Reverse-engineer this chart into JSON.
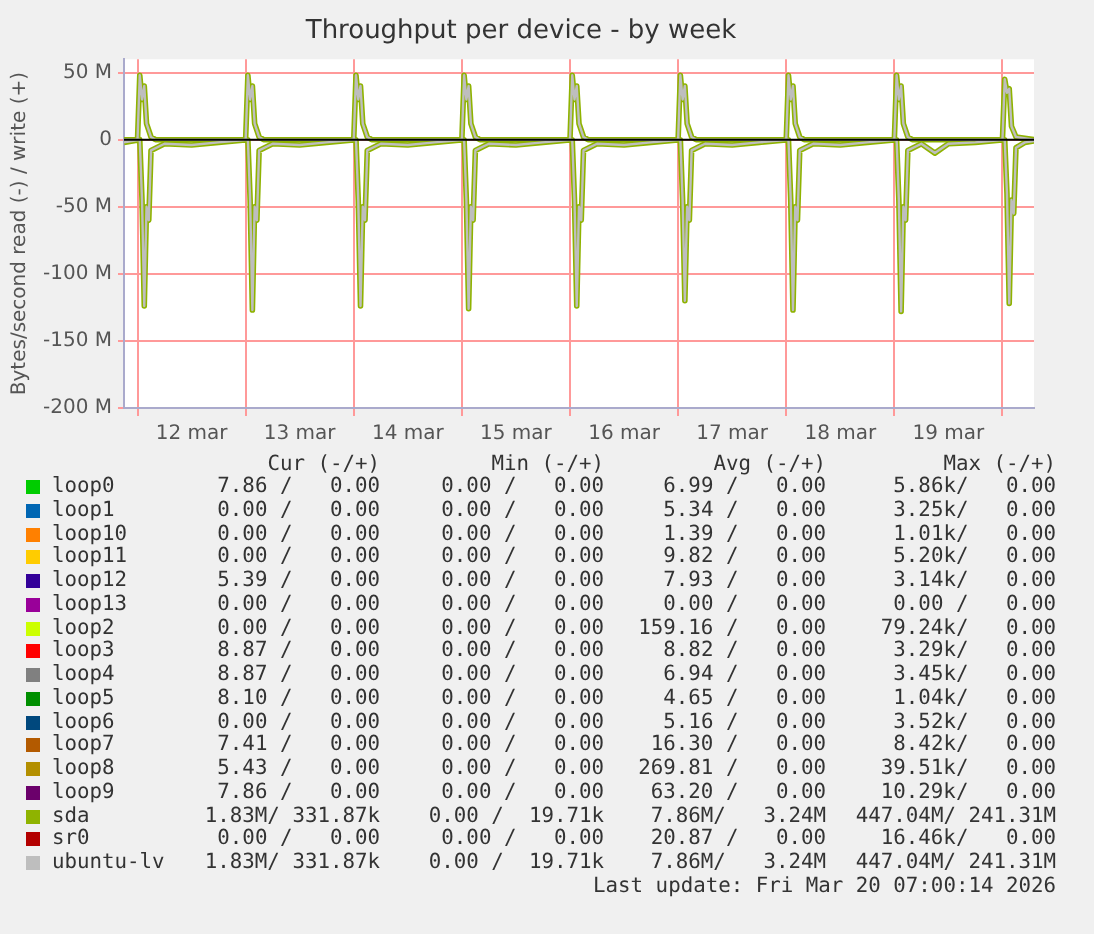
{
  "chart_data": {
    "type": "line",
    "title": "Throughput per device - by week",
    "ylabel": "Bytes/second read (-) / write (+)",
    "xlim": [
      "2026-03-11T21:00",
      "2026-03-20T07:00"
    ],
    "xticks": [
      {
        "value": "2026-03-12T00:00",
        "label": null
      },
      {
        "value": "2026-03-12T12:00",
        "label": "12 mar"
      },
      {
        "value": "2026-03-13T00:00",
        "label": null
      },
      {
        "value": "2026-03-13T12:00",
        "label": "13 mar"
      },
      {
        "value": "2026-03-14T00:00",
        "label": null
      },
      {
        "value": "2026-03-14T12:00",
        "label": "14 mar"
      },
      {
        "value": "2026-03-15T00:00",
        "label": null
      },
      {
        "value": "2026-03-15T12:00",
        "label": "15 mar"
      },
      {
        "value": "2026-03-16T00:00",
        "label": null
      },
      {
        "value": "2026-03-16T12:00",
        "label": "16 mar"
      },
      {
        "value": "2026-03-17T00:00",
        "label": null
      },
      {
        "value": "2026-03-17T12:00",
        "label": "17 mar"
      },
      {
        "value": "2026-03-18T00:00",
        "label": null
      },
      {
        "value": "2026-03-18T12:00",
        "label": "18 mar"
      },
      {
        "value": "2026-03-19T00:00",
        "label": null
      },
      {
        "value": "2026-03-19T12:00",
        "label": "19 mar"
      },
      {
        "value": "2026-03-20T00:00",
        "label": null
      }
    ],
    "ylim": [
      -200,
      60
    ],
    "yticks": [
      {
        "value": -200,
        "label": "-200 M"
      },
      {
        "value": -150,
        "label": "-150 M"
      },
      {
        "value": -100,
        "label": "-100 M"
      },
      {
        "value": -50,
        "label": "-50 M"
      },
      0,
      {
        "value": 50,
        "label": "50 M"
      }
    ],
    "grid": true,
    "legend": "bottom",
    "marker": "none",
    "line_style": "solid",
    "ref_lines": [
      {
        "axis": "y",
        "value": 0,
        "color": "#000000"
      }
    ],
    "series": [
      {
        "name": "loop0",
        "color": "#00cc00"
      },
      {
        "name": "loop1",
        "color": "#0066b3"
      },
      {
        "name": "loop10",
        "color": "#ff8000"
      },
      {
        "name": "loop11",
        "color": "#ffcc00"
      },
      {
        "name": "loop12",
        "color": "#330099"
      },
      {
        "name": "loop13",
        "color": "#990099"
      },
      {
        "name": "loop2",
        "color": "#ccff00"
      },
      {
        "name": "loop3",
        "color": "#ff0000"
      },
      {
        "name": "loop4",
        "color": "#808080"
      },
      {
        "name": "loop5",
        "color": "#008f00"
      },
      {
        "name": "loop6",
        "color": "#00487d"
      },
      {
        "name": "loop7",
        "color": "#b35a00"
      },
      {
        "name": "loop8",
        "color": "#b38f00"
      },
      {
        "name": "loop9",
        "color": "#6b006b"
      },
      {
        "name": "sda",
        "color": "#8fb300",
        "x": [
          "2026-03-11T21:00",
          "2026-03-12T00:30",
          "2026-03-12T01:00",
          "2026-03-12T01:30",
          "2026-03-12T02:00",
          "2026-03-12T02:30",
          "2026-03-12T03:00",
          "2026-03-12T06:00",
          "2026-03-12T12:00",
          "2026-03-12T18:00",
          "2026-03-13T00:30",
          "2026-03-13T01:00",
          "2026-03-13T01:30",
          "2026-03-13T02:00",
          "2026-03-13T02:30",
          "2026-03-13T03:00",
          "2026-03-13T06:00",
          "2026-03-13T12:00",
          "2026-03-13T18:00",
          "2026-03-14T00:30",
          "2026-03-14T01:00",
          "2026-03-14T01:30",
          "2026-03-14T02:00",
          "2026-03-14T02:30",
          "2026-03-14T03:00",
          "2026-03-14T06:00",
          "2026-03-14T12:00",
          "2026-03-14T18:00",
          "2026-03-15T00:30",
          "2026-03-15T01:00",
          "2026-03-15T01:30",
          "2026-03-15T02:00",
          "2026-03-15T02:30",
          "2026-03-15T03:00",
          "2026-03-15T06:00",
          "2026-03-15T12:00",
          "2026-03-15T18:00",
          "2026-03-16T00:30",
          "2026-03-16T01:00",
          "2026-03-16T01:30",
          "2026-03-16T02:00",
          "2026-03-16T02:30",
          "2026-03-16T03:00",
          "2026-03-16T06:00",
          "2026-03-16T12:00",
          "2026-03-16T18:00",
          "2026-03-17T00:30",
          "2026-03-17T01:00",
          "2026-03-17T01:30",
          "2026-03-17T02:00",
          "2026-03-17T02:30",
          "2026-03-17T03:00",
          "2026-03-17T06:00",
          "2026-03-17T12:00",
          "2026-03-17T18:00",
          "2026-03-18T00:30",
          "2026-03-18T01:00",
          "2026-03-18T01:30",
          "2026-03-18T02:00",
          "2026-03-18T02:30",
          "2026-03-18T03:00",
          "2026-03-18T06:00",
          "2026-03-18T12:00",
          "2026-03-18T18:00",
          "2026-03-19T00:30",
          "2026-03-19T01:00",
          "2026-03-19T01:30",
          "2026-03-19T02:00",
          "2026-03-19T02:30",
          "2026-03-19T03:00",
          "2026-03-19T06:00",
          "2026-03-19T09:00",
          "2026-03-19T12:00",
          "2026-03-19T18:00",
          "2026-03-20T00:30",
          "2026-03-20T01:00",
          "2026-03-20T01:30",
          "2026-03-20T02:00",
          "2026-03-20T02:30",
          "2026-03-20T03:00",
          "2026-03-20T05:00",
          "2026-03-20T07:00"
        ],
        "values": [
          -2,
          0,
          -45,
          -124,
          -50,
          -60,
          -8,
          -3,
          -4,
          -2,
          0,
          -45,
          -127,
          -50,
          -60,
          -8,
          -3,
          -4,
          -2,
          0,
          -45,
          -124,
          -50,
          -60,
          -8,
          -3,
          -4,
          -2,
          0,
          -45,
          -126,
          -50,
          -60,
          -8,
          -3,
          -4,
          -2,
          0,
          -45,
          -124,
          -50,
          -60,
          -8,
          -3,
          -4,
          -2,
          0,
          -45,
          -120,
          -50,
          -60,
          -8,
          -3,
          -4,
          -2,
          0,
          -45,
          -127,
          -50,
          -60,
          -8,
          -3,
          -4,
          -2,
          0,
          -45,
          -128,
          -50,
          -60,
          -8,
          -3,
          -10,
          -3,
          -2,
          0,
          -40,
          -122,
          -45,
          -55,
          -6,
          -2,
          -1
        ]
      },
      {
        "color": "#8fb300",
        "x": [
          "2026-03-11T21:00",
          "2026-03-12T00:00",
          "2026-03-12T00:30",
          "2026-03-12T01:00",
          "2026-03-12T01:30",
          "2026-03-12T02:00",
          "2026-03-12T03:00",
          "2026-03-12T04:00",
          "2026-03-13T00:00",
          "2026-03-13T00:30",
          "2026-03-13T01:00",
          "2026-03-13T01:30",
          "2026-03-13T02:00",
          "2026-03-13T03:00",
          "2026-03-13T04:00",
          "2026-03-14T00:00",
          "2026-03-14T00:30",
          "2026-03-14T01:00",
          "2026-03-14T01:30",
          "2026-03-14T02:00",
          "2026-03-14T03:00",
          "2026-03-14T04:00",
          "2026-03-15T00:00",
          "2026-03-15T00:30",
          "2026-03-15T01:00",
          "2026-03-15T01:30",
          "2026-03-15T02:00",
          "2026-03-15T03:00",
          "2026-03-15T04:00",
          "2026-03-16T00:00",
          "2026-03-16T00:30",
          "2026-03-16T01:00",
          "2026-03-16T01:30",
          "2026-03-16T02:00",
          "2026-03-16T03:00",
          "2026-03-16T04:00",
          "2026-03-17T00:00",
          "2026-03-17T00:30",
          "2026-03-17T01:00",
          "2026-03-17T01:30",
          "2026-03-17T02:00",
          "2026-03-17T03:00",
          "2026-03-17T04:00",
          "2026-03-18T00:00",
          "2026-03-18T00:30",
          "2026-03-18T01:00",
          "2026-03-18T01:30",
          "2026-03-18T02:00",
          "2026-03-18T03:00",
          "2026-03-18T04:00",
          "2026-03-19T00:00",
          "2026-03-19T00:30",
          "2026-03-19T01:00",
          "2026-03-19T01:30",
          "2026-03-19T02:00",
          "2026-03-19T03:00",
          "2026-03-19T04:00",
          "2026-03-20T00:00",
          "2026-03-20T00:30",
          "2026-03-20T01:00",
          "2026-03-20T01:30",
          "2026-03-20T02:00",
          "2026-03-20T03:00",
          "2026-03-20T07:00"
        ],
        "values": [
          0,
          0,
          48,
          30,
          40,
          12,
          2,
          0,
          0,
          48,
          30,
          40,
          12,
          2,
          0,
          0,
          48,
          30,
          40,
          12,
          2,
          0,
          0,
          48,
          30,
          40,
          12,
          2,
          0,
          0,
          48,
          30,
          40,
          12,
          2,
          0,
          0,
          48,
          30,
          40,
          12,
          2,
          0,
          0,
          48,
          30,
          40,
          12,
          2,
          0,
          0,
          48,
          30,
          40,
          12,
          2,
          0,
          0,
          45,
          35,
          38,
          10,
          2,
          0
        ]
      },
      {
        "name": "sr0",
        "color": "#b30000"
      },
      {
        "name": "ubuntu-lv",
        "color": "#bebebe",
        "x": [
          "2026-03-11T21:00",
          "2026-03-12T00:30",
          "2026-03-12T01:00",
          "2026-03-12T01:30",
          "2026-03-12T02:00",
          "2026-03-12T02:30",
          "2026-03-12T03:00",
          "2026-03-12T06:00",
          "2026-03-12T12:00",
          "2026-03-12T18:00",
          "2026-03-13T00:30",
          "2026-03-13T01:00",
          "2026-03-13T01:30",
          "2026-03-13T02:00",
          "2026-03-13T02:30",
          "2026-03-13T03:00",
          "2026-03-13T06:00",
          "2026-03-13T12:00",
          "2026-03-13T18:00",
          "2026-03-14T00:30",
          "2026-03-14T01:00",
          "2026-03-14T01:30",
          "2026-03-14T02:00",
          "2026-03-14T02:30",
          "2026-03-14T03:00",
          "2026-03-14T06:00",
          "2026-03-14T12:00",
          "2026-03-14T18:00",
          "2026-03-15T00:30",
          "2026-03-15T01:00",
          "2026-03-15T01:30",
          "2026-03-15T02:00",
          "2026-03-15T02:30",
          "2026-03-15T03:00",
          "2026-03-15T06:00",
          "2026-03-15T12:00",
          "2026-03-15T18:00",
          "2026-03-16T00:30",
          "2026-03-16T01:00",
          "2026-03-16T01:30",
          "2026-03-16T02:00",
          "2026-03-16T02:30",
          "2026-03-16T03:00",
          "2026-03-16T06:00",
          "2026-03-16T12:00",
          "2026-03-16T18:00",
          "2026-03-17T00:30",
          "2026-03-17T01:00",
          "2026-03-17T01:30",
          "2026-03-17T02:00",
          "2026-03-17T02:30",
          "2026-03-17T03:00",
          "2026-03-17T06:00",
          "2026-03-17T12:00",
          "2026-03-17T18:00",
          "2026-03-18T00:30",
          "2026-03-18T01:00",
          "2026-03-18T01:30",
          "2026-03-18T02:00",
          "2026-03-18T02:30",
          "2026-03-18T03:00",
          "2026-03-18T06:00",
          "2026-03-18T12:00",
          "2026-03-18T18:00",
          "2026-03-19T00:30",
          "2026-03-19T01:00",
          "2026-03-19T01:30",
          "2026-03-19T02:00",
          "2026-03-19T02:30",
          "2026-03-19T03:00",
          "2026-03-19T06:00",
          "2026-03-19T09:00",
          "2026-03-19T12:00",
          "2026-03-19T18:00",
          "2026-03-20T00:30",
          "2026-03-20T01:00",
          "2026-03-20T01:30",
          "2026-03-20T02:00",
          "2026-03-20T02:30",
          "2026-03-20T03:00",
          "2026-03-20T05:00",
          "2026-03-20T07:00"
        ],
        "values": [
          -2,
          0,
          -45,
          -124,
          -50,
          -60,
          -8,
          -3,
          -4,
          -2,
          0,
          -45,
          -127,
          -50,
          -60,
          -8,
          -3,
          -4,
          -2,
          0,
          -45,
          -124,
          -50,
          -60,
          -8,
          -3,
          -4,
          -2,
          0,
          -45,
          -126,
          -50,
          -60,
          -8,
          -3,
          -4,
          -2,
          0,
          -45,
          -124,
          -50,
          -60,
          -8,
          -3,
          -4,
          -2,
          0,
          -45,
          -120,
          -50,
          -60,
          -8,
          -3,
          -4,
          -2,
          0,
          -45,
          -127,
          -50,
          -60,
          -8,
          -3,
          -4,
          -2,
          0,
          -45,
          -128,
          -50,
          -60,
          -8,
          -3,
          -10,
          -3,
          -2,
          0,
          -40,
          -122,
          -45,
          -55,
          -6,
          -2,
          -1
        ]
      },
      {
        "color": "#bebebe",
        "x": [
          "2026-03-11T21:00",
          "2026-03-12T00:00",
          "2026-03-12T00:30",
          "2026-03-12T01:00",
          "2026-03-12T01:30",
          "2026-03-12T02:00",
          "2026-03-12T03:00",
          "2026-03-12T04:00",
          "2026-03-13T00:00",
          "2026-03-13T00:30",
          "2026-03-13T01:00",
          "2026-03-13T01:30",
          "2026-03-13T02:00",
          "2026-03-13T03:00",
          "2026-03-13T04:00",
          "2026-03-14T00:00",
          "2026-03-14T00:30",
          "2026-03-14T01:00",
          "2026-03-14T01:30",
          "2026-03-14T02:00",
          "2026-03-14T03:00",
          "2026-03-14T04:00",
          "2026-03-15T00:00",
          "2026-03-15T00:30",
          "2026-03-15T01:00",
          "2026-03-15T01:30",
          "2026-03-15T02:00",
          "2026-03-15T03:00",
          "2026-03-15T04:00",
          "2026-03-16T00:00",
          "2026-03-16T00:30",
          "2026-03-16T01:00",
          "2026-03-16T01:30",
          "2026-03-16T02:00",
          "2026-03-16T03:00",
          "2026-03-16T04:00",
          "2026-03-17T00:00",
          "2026-03-17T00:30",
          "2026-03-17T01:00",
          "2026-03-17T01:30",
          "2026-03-17T02:00",
          "2026-03-17T03:00",
          "2026-03-17T04:00",
          "2026-03-18T00:00",
          "2026-03-18T00:30",
          "2026-03-18T01:00",
          "2026-03-18T01:30",
          "2026-03-18T02:00",
          "2026-03-18T03:00",
          "2026-03-18T04:00",
          "2026-03-19T00:00",
          "2026-03-19T00:30",
          "2026-03-19T01:00",
          "2026-03-19T01:30",
          "2026-03-19T02:00",
          "2026-03-19T03:00",
          "2026-03-19T04:00",
          "2026-03-20T00:00",
          "2026-03-20T00:30",
          "2026-03-20T01:00",
          "2026-03-20T01:30",
          "2026-03-20T02:00",
          "2026-03-20T03:00",
          "2026-03-20T07:00"
        ],
        "values": [
          0,
          0,
          48,
          30,
          40,
          12,
          2,
          0,
          0,
          48,
          30,
          40,
          12,
          2,
          0,
          0,
          48,
          30,
          40,
          12,
          2,
          0,
          0,
          48,
          30,
          40,
          12,
          2,
          0,
          0,
          48,
          30,
          40,
          12,
          2,
          0,
          0,
          48,
          30,
          40,
          12,
          2,
          0,
          0,
          48,
          30,
          40,
          12,
          2,
          0,
          0,
          48,
          30,
          40,
          12,
          2,
          0,
          0,
          45,
          35,
          38,
          10,
          2,
          0
        ]
      }
    ],
    "annotations": [
      "Cur (-/+)",
      "Min (-/+)",
      "Avg (-/+)",
      "Max (-/+)",
      "7.86 /   0.00",
      "0.00 /   0.00",
      "6.99 /   0.00",
      "5.86k/   0.00",
      "0.00 /   0.00",
      "0.00 /   0.00",
      "5.34 /   0.00",
      "3.25k/   0.00",
      "0.00 /   0.00",
      "0.00 /   0.00",
      "1.39 /   0.00",
      "1.01k/   0.00",
      "0.00 /   0.00",
      "0.00 /   0.00",
      "9.82 /   0.00",
      "5.20k/   0.00",
      "5.39 /   0.00",
      "0.00 /   0.00",
      "7.93 /   0.00",
      "3.14k/   0.00",
      "0.00 /   0.00",
      "0.00 /   0.00",
      "0.00 /   0.00",
      "0.00 /   0.00",
      "0.00 /   0.00",
      "0.00 /   0.00",
      "159.16 /   0.00",
      "79.24k/   0.00",
      "8.87 /   0.00",
      "0.00 /   0.00",
      "8.82 /   0.00",
      "3.29k/   0.00",
      "8.87 /   0.00",
      "0.00 /   0.00",
      "6.94 /   0.00",
      "3.45k/   0.00",
      "8.10 /   0.00",
      "0.00 /   0.00",
      "4.65 /   0.00",
      "1.04k/   0.00",
      "0.00 /   0.00",
      "0.00 /   0.00",
      "5.16 /   0.00",
      "3.52k/   0.00",
      "7.41 /   0.00",
      "0.00 /   0.00",
      "16.30 /   0.00",
      "8.42k/   0.00",
      "5.43 /   0.00",
      "0.00 /   0.00",
      "269.81 /   0.00",
      "39.51k/   0.00",
      "7.86 /   0.00",
      "0.00 /   0.00",
      "63.20 /   0.00",
      "10.29k/   0.00",
      "1.83M/ 331.87k",
      "0.00 /  19.71k",
      "7.86M/   3.24M",
      "447.04M/ 241.31M",
      "0.00 /   0.00",
      "0.00 /   0.00",
      "20.87 /   0.00",
      "16.46k/   0.00",
      "1.83M/ 331.87k",
      "0.00 /  19.71k",
      "7.86M/   3.24M",
      "447.04M/ 241.31M",
      "Last update: Fri Mar 20 07:00:14 2026"
    ]
  }
}
